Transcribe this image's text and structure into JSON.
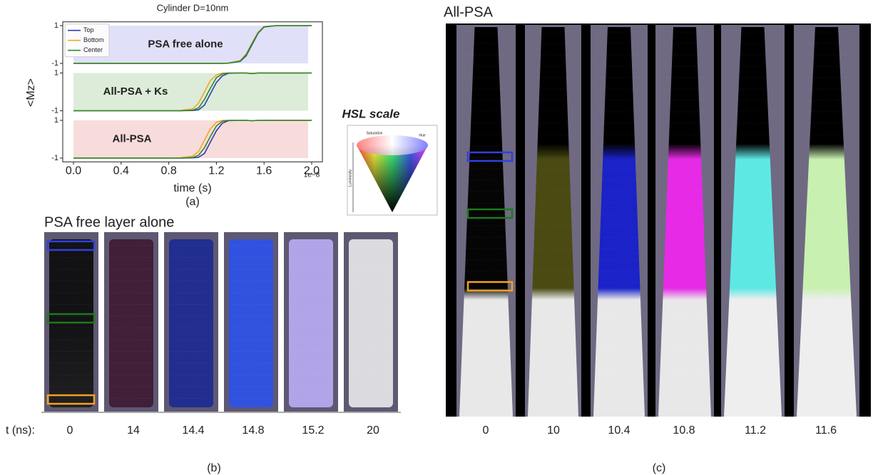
{
  "chart_data": {
    "type": "line",
    "title": "Cylinder D=10nm",
    "xlabel": "time (s)",
    "ylabel": "<Mz>",
    "x_offset_label": "1e−8",
    "x": [
      0,
      0.2,
      0.4,
      0.6,
      0.8,
      0.9,
      1.0,
      1.05,
      1.1,
      1.15,
      1.2,
      1.25,
      1.3,
      1.4,
      1.45,
      1.5,
      1.55,
      1.6,
      1.7,
      1.8,
      2.0
    ],
    "xlim": [
      -0.09,
      2.09
    ],
    "xticks": [
      {
        "value": 0,
        "label": "0.0"
      },
      0.4,
      0.8,
      1.2,
      1.6,
      {
        "value": 2,
        "label": "2.0"
      }
    ],
    "ylim": [
      -1.2,
      1.2
    ],
    "yticks": [
      -1,
      1
    ],
    "legend": "upper left",
    "series": [
      {
        "name": "Top",
        "color": "#2c3cb0"
      },
      {
        "name": "Bottom",
        "color": "#f5a623"
      },
      {
        "name": "Center",
        "color": "#2e8b2e"
      }
    ],
    "panels": [
      {
        "annotation": "PSA free alone",
        "background": "#e0e0f8",
        "values": [
          [
            -1,
            -1,
            -1,
            -1,
            -1,
            -1,
            -1,
            -1,
            -1,
            -1,
            -1,
            -1,
            -0.99,
            -0.9,
            -0.6,
            0,
            0.6,
            0.93,
            1,
            1,
            1
          ],
          [
            -1,
            -1,
            -1,
            -1,
            -1,
            -1,
            -1,
            -1,
            -1,
            -1,
            -1,
            -1,
            -0.98,
            -0.85,
            -0.5,
            0.1,
            0.65,
            0.95,
            1,
            1,
            1
          ],
          [
            -1,
            -1,
            -1,
            -1,
            -1,
            -1,
            -1,
            -1,
            -1,
            -1,
            -1,
            -1,
            -0.99,
            -0.88,
            -0.55,
            0.05,
            0.62,
            0.94,
            1,
            1,
            1
          ]
        ]
      },
      {
        "annotation": "All-PSA + Ks",
        "background": "#dcecd8",
        "values": [
          [
            -1,
            -1,
            -1,
            -1,
            -1,
            -1,
            -0.99,
            -0.95,
            -0.7,
            -0.1,
            0.5,
            0.85,
            0.98,
            1,
            1,
            0.97,
            1,
            1,
            1,
            1,
            1
          ],
          [
            -1,
            -1,
            -1,
            -1,
            -1,
            -0.98,
            -0.9,
            -0.6,
            0,
            0.6,
            0.9,
            1,
            1,
            1,
            1,
            0.98,
            1,
            1,
            1,
            1,
            1
          ],
          [
            -1,
            -1,
            -1,
            -1,
            -1,
            -1,
            -0.97,
            -0.85,
            -0.4,
            0.2,
            0.75,
            0.95,
            1,
            1,
            1,
            0.97,
            1,
            1,
            1,
            1,
            1
          ]
        ]
      },
      {
        "annotation": "All-PSA",
        "background": "#f8dcdc",
        "values": [
          [
            -1,
            -1,
            -1,
            -1,
            -1,
            -1,
            -0.99,
            -0.96,
            -0.75,
            -0.15,
            0.45,
            0.85,
            0.98,
            1,
            1,
            0.98,
            1,
            1,
            1,
            1,
            1
          ],
          [
            -1,
            -1,
            -1,
            -1,
            -1,
            -0.98,
            -0.9,
            -0.65,
            -0.05,
            0.55,
            0.9,
            1,
            1,
            1,
            1,
            0.98,
            1,
            1,
            1,
            1,
            1
          ],
          [
            -1,
            -1,
            -1,
            -1,
            -1,
            -1,
            -0.97,
            -0.85,
            -0.45,
            0.15,
            0.7,
            0.95,
            1,
            1,
            1,
            0.98,
            1,
            1,
            1,
            1,
            1
          ]
        ]
      }
    ]
  },
  "panel_a": {
    "caption": "(a)"
  },
  "hsl": {
    "title": "HSL scale",
    "labels": [
      "Saturation",
      "Hue",
      "Luminosity"
    ]
  },
  "panel_b": {
    "title": "PSA free layer alone",
    "row_label": "t (ns):",
    "times": [
      0,
      14,
      14.4,
      14.8,
      15.2,
      20
    ],
    "colors": [
      "#0c0c0c",
      "#3e1a33",
      "#1c2a92",
      "#2c52e8",
      "#b9aaf2",
      "#e6e6ea"
    ],
    "caption": "(b)"
  },
  "panel_c": {
    "title": "All-PSA",
    "times": [
      0,
      10,
      10.4,
      10.8,
      11.2,
      11.6
    ],
    "colors": [
      [
        "#000000",
        "#050505",
        "#e8e8e8"
      ],
      [
        "#000000",
        "#4a4a12",
        "#e8e8e8"
      ],
      [
        "#000000",
        "#1a22c8",
        "#e8e8e8"
      ],
      [
        "#000000",
        "#e62ae6",
        "#e8e8e8"
      ],
      [
        "#000000",
        "#5ee8e4",
        "#eeeeee"
      ],
      [
        "#000000",
        "#c8f0b0",
        "#eeeeee"
      ]
    ],
    "caption": "(c)"
  }
}
